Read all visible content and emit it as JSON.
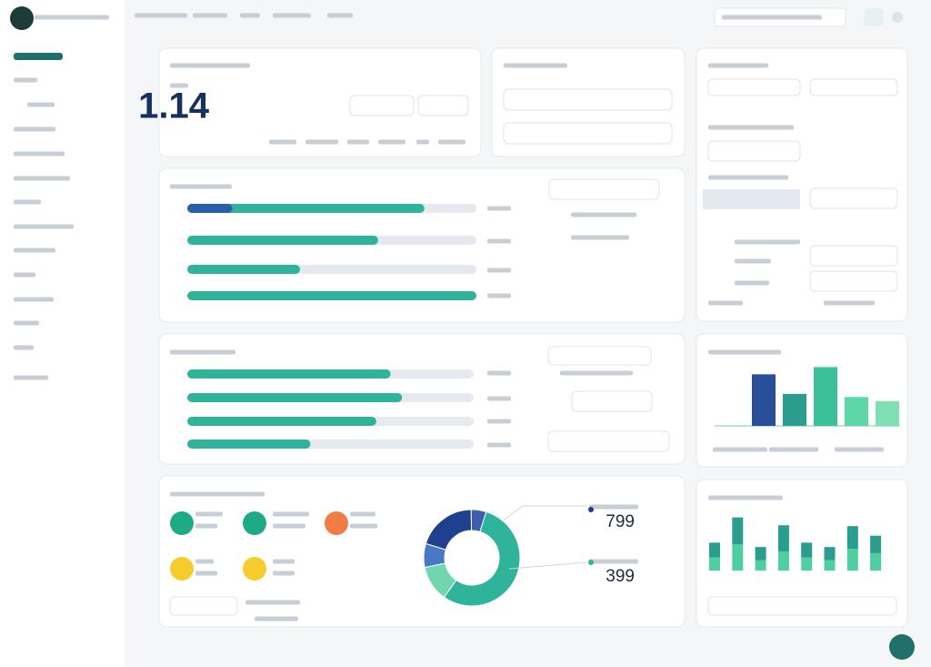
{
  "kpi": {
    "value": "1.14"
  },
  "progress_1": {
    "values": [
      82,
      66,
      39,
      100
    ],
    "xlim": [
      0,
      100
    ],
    "color": "#2fb39a",
    "accent": "#2a5ea8"
  },
  "progress_2": {
    "values": [
      71,
      75,
      66,
      43
    ],
    "xlim": [
      0,
      100
    ],
    "color": "#2fb39a"
  },
  "bar_chart_1": {
    "type": "bar",
    "values": [
      50,
      31,
      57,
      28,
      24
    ],
    "colors": [
      "#2a4f9a",
      "#2a9d8f",
      "#3cc09a",
      "#5dd6a8",
      "#7ee0b4"
    ],
    "ylim": [
      0,
      60
    ]
  },
  "bar_chart_2": {
    "type": "stacked_bar",
    "ylim": [
      0,
      70
    ],
    "series": [
      {
        "color": "#4fcf9f",
        "values": [
          15,
          30,
          12,
          22,
          15,
          12,
          25,
          20
        ]
      },
      {
        "color": "#2a9d8f",
        "values": [
          17,
          31,
          15,
          30,
          17,
          15,
          26,
          20
        ]
      }
    ]
  },
  "donut": {
    "type": "pie",
    "values": [
      55,
      12,
      8,
      20,
      5
    ],
    "colors": [
      "#2fb39a",
      "#6fd6b0",
      "#4a78c4",
      "#1f3f8f",
      "#3a5fb0"
    ]
  },
  "stats": [
    {
      "value": "799"
    },
    {
      "value": "399"
    }
  ]
}
